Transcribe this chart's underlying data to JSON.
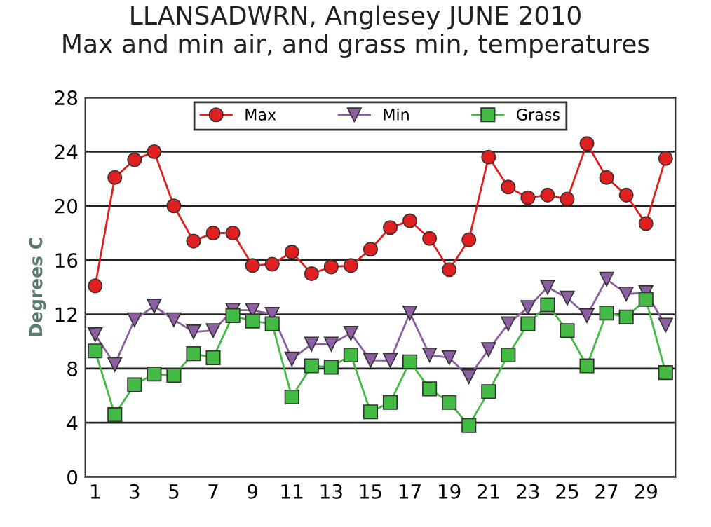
{
  "chart_data": {
    "type": "line",
    "title": "LLANSADWRN, Anglesey JUNE 2010\nMax and min air, and grass min, temperatures",
    "ylabel": "Degrees C",
    "x": [
      1,
      2,
      3,
      4,
      5,
      6,
      7,
      8,
      9,
      10,
      11,
      12,
      13,
      14,
      15,
      16,
      17,
      18,
      19,
      20,
      21,
      22,
      23,
      24,
      25,
      26,
      27,
      28,
      29,
      30
    ],
    "series": [
      {
        "name": "Max",
        "color": "#e02020",
        "marker": "circle",
        "values": [
          14.1,
          22.1,
          23.4,
          24.0,
          20.0,
          17.4,
          18.0,
          18.0,
          15.6,
          15.7,
          16.6,
          15.0,
          15.5,
          15.6,
          16.8,
          18.4,
          18.9,
          17.6,
          15.3,
          17.5,
          23.6,
          21.4,
          20.6,
          20.8,
          20.5,
          24.6,
          22.1,
          20.8,
          18.7,
          23.5
        ]
      },
      {
        "name": "Min",
        "color": "#8e5ea2",
        "marker": "triangle",
        "values": [
          10.5,
          8.3,
          11.6,
          12.6,
          11.6,
          10.7,
          10.8,
          12.3,
          12.3,
          12.0,
          8.7,
          9.8,
          9.8,
          10.6,
          8.6,
          8.6,
          12.1,
          9.0,
          8.8,
          7.4,
          9.4,
          11.3,
          12.5,
          14.0,
          13.2,
          11.9,
          14.6,
          13.5,
          13.6,
          11.2
        ]
      },
      {
        "name": "Grass",
        "color": "#44bb44",
        "marker": "square",
        "values": [
          9.3,
          4.6,
          6.8,
          7.6,
          7.5,
          9.1,
          8.8,
          11.9,
          11.5,
          11.3,
          5.9,
          8.2,
          8.1,
          9.0,
          4.8,
          5.5,
          8.5,
          6.5,
          5.5,
          3.8,
          6.3,
          9.0,
          11.3,
          12.7,
          10.8,
          8.2,
          12.1,
          11.8,
          13.1,
          7.7
        ]
      }
    ],
    "xlim": [
      0.5,
      30.5
    ],
    "xticks": [
      1,
      3,
      5,
      7,
      9,
      11,
      13,
      15,
      17,
      19,
      21,
      23,
      25,
      27,
      29
    ],
    "ylim": [
      0,
      28
    ],
    "yticks": [
      0,
      4,
      8,
      12,
      16,
      20,
      24,
      28
    ],
    "grid": "y",
    "legend": "top",
    "line_style": "solid"
  }
}
